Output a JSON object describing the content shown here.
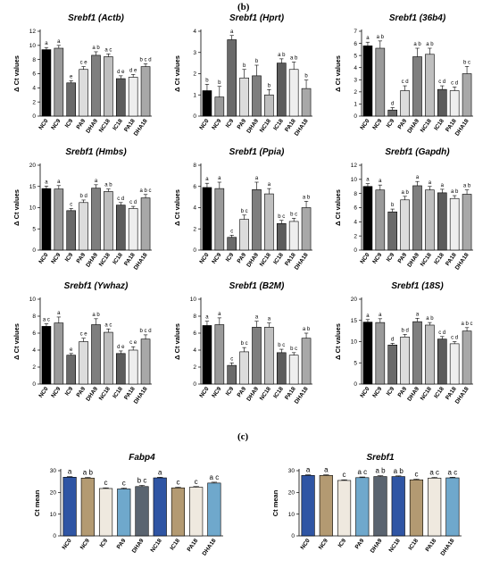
{
  "panel_labels": {
    "b": "(b)",
    "c": "(c)"
  },
  "chart_data": [
    {
      "type": "bar",
      "title_gene": "Srebf1",
      "title_ref": "(Actb)",
      "ylabel": "Δ Ct values",
      "ylim": [
        0,
        12
      ],
      "yticks": [
        0,
        2,
        4,
        6,
        8,
        10,
        12
      ],
      "categories": [
        "NC0",
        "NC9",
        "IC9",
        "PA9",
        "DHA9",
        "NC18",
        "IC18",
        "PA18",
        "DHA18"
      ],
      "values": [
        9.4,
        9.6,
        4.7,
        6.6,
        8.6,
        8.4,
        5.3,
        5.5,
        7.0
      ],
      "errors": [
        0.3,
        0.4,
        0.3,
        0.4,
        0.5,
        0.4,
        0.4,
        0.4,
        0.4
      ],
      "sig": [
        "a",
        "a",
        "e",
        "ce",
        "ab",
        "ac",
        "de",
        "de",
        "bcd"
      ],
      "colors": [
        "#000000",
        "#9a9a9a",
        "#6a6a6a",
        "#dcdcdc",
        "#7e7e7e",
        "#bfbfbf",
        "#5c5c5c",
        "#eeeeee",
        "#a8a8a8"
      ]
    },
    {
      "type": "bar",
      "title_gene": "Srebf1",
      "title_ref": "(Hprt)",
      "ylabel": "Δ Ct values",
      "ylim": [
        0,
        4
      ],
      "yticks": [
        0,
        1,
        2,
        3,
        4
      ],
      "categories": [
        "NC0",
        "NC9",
        "IC9",
        "PA9",
        "DHA9",
        "NC18",
        "IC18",
        "PA18",
        "DHA18"
      ],
      "values": [
        1.2,
        0.9,
        3.6,
        1.8,
        1.9,
        1.0,
        2.5,
        2.2,
        1.3
      ],
      "errors": [
        0.3,
        0.5,
        0.2,
        0.4,
        0.5,
        0.25,
        0.2,
        0.35,
        0.4
      ],
      "sig": [
        "b",
        "b",
        "a",
        "b",
        "b",
        "b",
        "ab",
        "ab",
        "b"
      ],
      "colors": [
        "#000000",
        "#9a9a9a",
        "#6a6a6a",
        "#dcdcdc",
        "#7e7e7e",
        "#bfbfbf",
        "#5c5c5c",
        "#eeeeee",
        "#a8a8a8"
      ]
    },
    {
      "type": "bar",
      "title_gene": "Srebf1",
      "title_ref": "(36b4)",
      "ylabel": "Δ Ct values",
      "ylim": [
        0,
        7
      ],
      "yticks": [
        0,
        1,
        2,
        3,
        4,
        5,
        6,
        7
      ],
      "categories": [
        "NC0",
        "NC9",
        "IC9",
        "PA9",
        "DHA9",
        "NC18",
        "IC18",
        "PA18",
        "DHA18"
      ],
      "values": [
        5.8,
        5.6,
        0.5,
        2.1,
        4.9,
        5.1,
        2.2,
        2.1,
        3.5
      ],
      "errors": [
        0.3,
        0.6,
        0.2,
        0.4,
        0.7,
        0.5,
        0.3,
        0.3,
        0.6
      ],
      "sig": [
        "a",
        "ab",
        "d",
        "cd",
        "ab",
        "ab",
        "cd",
        "cd",
        "bc"
      ],
      "colors": [
        "#000000",
        "#9a9a9a",
        "#6a6a6a",
        "#dcdcdc",
        "#7e7e7e",
        "#bfbfbf",
        "#5c5c5c",
        "#eeeeee",
        "#a8a8a8"
      ]
    },
    {
      "type": "bar",
      "title_gene": "Srebf1",
      "title_ref": "(Hmbs)",
      "ylabel": "Δ Ct values",
      "ylim": [
        0,
        20
      ],
      "yticks": [
        0,
        5,
        10,
        15,
        20
      ],
      "categories": [
        "NC0",
        "NC9",
        "IC9",
        "PA9",
        "DHA9",
        "NC18",
        "IC18",
        "PA18",
        "DHA18"
      ],
      "values": [
        14.5,
        14.4,
        9.3,
        11.2,
        14.6,
        13.8,
        10.6,
        9.8,
        12.3
      ],
      "errors": [
        0.6,
        0.8,
        0.5,
        0.6,
        0.8,
        0.6,
        0.6,
        0.5,
        0.8
      ],
      "sig": [
        "a",
        "a",
        "c",
        "bd",
        "a",
        "ab",
        "cd",
        "cd",
        "abc"
      ],
      "colors": [
        "#000000",
        "#9a9a9a",
        "#6a6a6a",
        "#dcdcdc",
        "#7e7e7e",
        "#bfbfbf",
        "#5c5c5c",
        "#eeeeee",
        "#a8a8a8"
      ]
    },
    {
      "type": "bar",
      "title_gene": "Srebf1",
      "title_ref": "(Ppia)",
      "ylabel": "Δ Ct values",
      "ylim": [
        0,
        8
      ],
      "yticks": [
        0,
        2,
        4,
        6,
        8
      ],
      "categories": [
        "NC0",
        "NC9",
        "IC9",
        "PA9",
        "DHA9",
        "NC18",
        "IC18",
        "PA18",
        "DHA18"
      ],
      "values": [
        5.9,
        5.8,
        1.2,
        2.9,
        5.7,
        5.3,
        2.5,
        2.7,
        4.0
      ],
      "errors": [
        0.4,
        0.6,
        0.2,
        0.4,
        0.7,
        0.5,
        0.3,
        0.3,
        0.6
      ],
      "sig": [
        "a",
        "a",
        "c",
        "bc",
        "a",
        "a",
        "bc",
        "bc",
        "ab"
      ],
      "colors": [
        "#000000",
        "#9a9a9a",
        "#6a6a6a",
        "#dcdcdc",
        "#7e7e7e",
        "#bfbfbf",
        "#5c5c5c",
        "#eeeeee",
        "#a8a8a8"
      ]
    },
    {
      "type": "bar",
      "title_gene": "Srebf1",
      "title_ref": "(Gapdh)",
      "ylabel": "Δ Ct values",
      "ylim": [
        0,
        12
      ],
      "yticks": [
        0,
        2,
        4,
        6,
        8,
        10,
        12
      ],
      "categories": [
        "NC0",
        "NC9",
        "IC9",
        "PA9",
        "DHA9",
        "NC18",
        "IC18",
        "PA18",
        "DHA18"
      ],
      "values": [
        9.0,
        8.5,
        5.4,
        7.1,
        9.1,
        8.5,
        8.1,
        7.3,
        7.9
      ],
      "errors": [
        0.4,
        0.7,
        0.4,
        0.5,
        0.6,
        0.5,
        0.5,
        0.4,
        0.6
      ],
      "sig": [
        "a",
        "a",
        "b",
        "ab",
        "a",
        "a",
        "a",
        "ab",
        "ab"
      ],
      "colors": [
        "#000000",
        "#9a9a9a",
        "#6a6a6a",
        "#dcdcdc",
        "#7e7e7e",
        "#bfbfbf",
        "#5c5c5c",
        "#eeeeee",
        "#a8a8a8"
      ]
    },
    {
      "type": "bar",
      "title_gene": "Srebf1",
      "title_ref": "(Ywhaz)",
      "ylabel": "Δ Ct values",
      "ylim": [
        0,
        10
      ],
      "yticks": [
        0,
        2,
        4,
        6,
        8,
        10
      ],
      "categories": [
        "NC0",
        "NC9",
        "IC9",
        "PA9",
        "DHA9",
        "NC18",
        "IC18",
        "PA18",
        "DHA18"
      ],
      "values": [
        6.8,
        7.2,
        3.4,
        5.0,
        7.0,
        6.1,
        3.6,
        4.0,
        5.3
      ],
      "errors": [
        0.3,
        0.7,
        0.2,
        0.4,
        0.7,
        0.4,
        0.3,
        0.4,
        0.5
      ],
      "sig": [
        "ac",
        "a",
        "e",
        "ce",
        "ab",
        "ac",
        "de",
        "ce",
        "bcd"
      ],
      "colors": [
        "#000000",
        "#9a9a9a",
        "#6a6a6a",
        "#dcdcdc",
        "#7e7e7e",
        "#bfbfbf",
        "#5c5c5c",
        "#eeeeee",
        "#a8a8a8"
      ]
    },
    {
      "type": "bar",
      "title_gene": "Srebf1",
      "title_ref": "(B2M)",
      "ylabel": "Δ Ct values",
      "ylim": [
        0,
        10
      ],
      "yticks": [
        0,
        2,
        4,
        6,
        8,
        10
      ],
      "categories": [
        "NC0",
        "NC9",
        "IC9",
        "PA9",
        "DHA9",
        "NC18",
        "IC18",
        "PA18",
        "DHA18"
      ],
      "values": [
        6.9,
        7.0,
        2.2,
        3.8,
        6.7,
        6.7,
        3.7,
        3.4,
        5.4
      ],
      "errors": [
        0.5,
        0.8,
        0.3,
        0.5,
        0.7,
        0.5,
        0.4,
        0.3,
        0.6
      ],
      "sig": [
        "a",
        "a",
        "c",
        "bc",
        "a",
        "a",
        "bc",
        "bc",
        "ab"
      ],
      "colors": [
        "#000000",
        "#9a9a9a",
        "#6a6a6a",
        "#dcdcdc",
        "#7e7e7e",
        "#bfbfbf",
        "#5c5c5c",
        "#eeeeee",
        "#a8a8a8"
      ]
    },
    {
      "type": "bar",
      "title_gene": "Srebf1",
      "title_ref": "(18S)",
      "ylabel": "Δ Ct values",
      "ylim": [
        0,
        20
      ],
      "yticks": [
        0,
        5,
        10,
        15,
        20
      ],
      "categories": [
        "NC0",
        "NC9",
        "IC9",
        "PA9",
        "DHA9",
        "NC18",
        "IC18",
        "PA18",
        "DHA18"
      ],
      "values": [
        14.6,
        14.5,
        9.2,
        11.1,
        14.7,
        13.9,
        10.6,
        9.5,
        12.5
      ],
      "errors": [
        0.6,
        0.9,
        0.4,
        0.6,
        0.8,
        0.6,
        0.6,
        0.5,
        0.8
      ],
      "sig": [
        "a",
        "a",
        "d",
        "bd",
        "a",
        "ab",
        "cd",
        "cd",
        "abc"
      ],
      "colors": [
        "#000000",
        "#9a9a9a",
        "#6a6a6a",
        "#dcdcdc",
        "#7e7e7e",
        "#bfbfbf",
        "#5c5c5c",
        "#eeeeee",
        "#a8a8a8"
      ]
    },
    {
      "type": "bar",
      "title_gene": "Fabp4",
      "title_ref": "",
      "ylabel": "Ct mean",
      "ylim": [
        0,
        30
      ],
      "yticks": [
        0,
        10,
        20,
        30
      ],
      "categories": [
        "NC0",
        "NC9",
        "IC9",
        "PA9",
        "DHA9",
        "NC18",
        "IC18",
        "PA18",
        "DHA18"
      ],
      "values": [
        27.0,
        26.6,
        21.8,
        21.6,
        22.7,
        26.7,
        22.1,
        22.4,
        24.3
      ],
      "errors": [
        0.3,
        0.3,
        0.3,
        0.4,
        0.6,
        0.3,
        0.3,
        0.3,
        0.4
      ],
      "sig": [
        "a",
        "ab",
        "c",
        "c",
        "bc",
        "a",
        "c",
        "c",
        "ac"
      ],
      "colors": [
        "#2f55a4",
        "#b39a72",
        "#efe9df",
        "#6fa8cc",
        "#5a6470",
        "#2f55a4",
        "#b39a72",
        "#efe9df",
        "#6fa8cc"
      ]
    },
    {
      "type": "bar",
      "title_gene": "Srebf1",
      "title_ref": "",
      "ylabel": "Ct mean",
      "ylim": [
        0,
        30
      ],
      "yticks": [
        0,
        10,
        20,
        30
      ],
      "categories": [
        "NC0",
        "NC9",
        "IC9",
        "PA9",
        "DHA9",
        "NC18",
        "IC18",
        "PA18",
        "DHA18"
      ],
      "values": [
        27.8,
        27.8,
        25.5,
        26.8,
        27.3,
        27.3,
        25.8,
        26.6,
        26.7
      ],
      "errors": [
        0.3,
        0.3,
        0.3,
        0.3,
        0.4,
        0.3,
        0.3,
        0.3,
        0.3
      ],
      "sig": [
        "a",
        "a",
        "c",
        "ac",
        "ab",
        "ab",
        "c",
        "ac",
        "ac"
      ],
      "colors": [
        "#2f55a4",
        "#b39a72",
        "#efe9df",
        "#6fa8cc",
        "#5a6470",
        "#2f55a4",
        "#b39a72",
        "#efe9df",
        "#6fa8cc"
      ]
    }
  ]
}
